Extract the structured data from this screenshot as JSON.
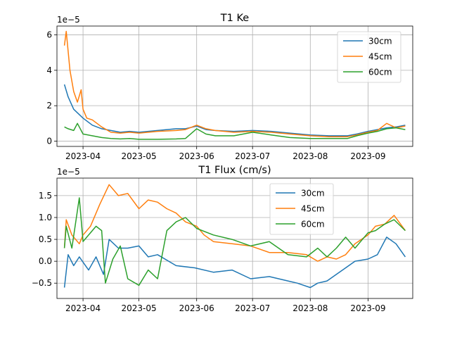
{
  "chart_data": [
    {
      "type": "line",
      "title": "T1 Ke",
      "offset_label": "1e−5",
      "xlabel": "",
      "ylabel": "",
      "x_ticks": [
        "2023-04",
        "2023-05",
        "2023-06",
        "2023-07",
        "2023-08",
        "2023-09"
      ],
      "y_ticks": [
        "0",
        "2",
        "4",
        "6"
      ],
      "ylim": [
        -0.3,
        6.5
      ],
      "grid": true,
      "legend_position": "top-right",
      "series": [
        {
          "name": "30cm",
          "color": "#1f77b4",
          "x": [
            "2023-03-22",
            "2023-03-24",
            "2023-03-27",
            "2023-04-01",
            "2023-04-06",
            "2023-04-11",
            "2023-04-16",
            "2023-04-21",
            "2023-04-26",
            "2023-05-01",
            "2023-05-11",
            "2023-05-21",
            "2023-05-26",
            "2023-06-01",
            "2023-06-06",
            "2023-06-11",
            "2023-06-21",
            "2023-07-01",
            "2023-07-11",
            "2023-07-21",
            "2023-08-01",
            "2023-08-11",
            "2023-08-21",
            "2023-08-26",
            "2023-09-01",
            "2023-09-06",
            "2023-09-11",
            "2023-09-16",
            "2023-09-21"
          ],
          "values": [
            3.2,
            2.5,
            1.8,
            1.3,
            0.9,
            0.7,
            0.6,
            0.5,
            0.55,
            0.5,
            0.6,
            0.7,
            0.7,
            0.85,
            0.65,
            0.6,
            0.55,
            0.6,
            0.55,
            0.45,
            0.35,
            0.3,
            0.3,
            0.4,
            0.55,
            0.65,
            0.75,
            0.8,
            0.9
          ]
        },
        {
          "name": "45cm",
          "color": "#ff7f0e",
          "x": [
            "2023-03-22",
            "2023-03-23",
            "2023-03-25",
            "2023-03-27",
            "2023-03-29",
            "2023-03-31",
            "2023-04-01",
            "2023-04-03",
            "2023-04-06",
            "2023-04-11",
            "2023-04-16",
            "2023-04-21",
            "2023-04-26",
            "2023-05-01",
            "2023-05-11",
            "2023-05-21",
            "2023-05-26",
            "2023-06-01",
            "2023-06-06",
            "2023-06-11",
            "2023-06-21",
            "2023-07-01",
            "2023-07-11",
            "2023-07-21",
            "2023-08-01",
            "2023-08-11",
            "2023-08-21",
            "2023-08-26",
            "2023-09-01",
            "2023-09-06",
            "2023-09-11",
            "2023-09-16",
            "2023-09-21"
          ],
          "values": [
            5.4,
            6.2,
            4.0,
            2.8,
            2.2,
            2.9,
            1.8,
            1.3,
            1.2,
            0.8,
            0.5,
            0.45,
            0.5,
            0.45,
            0.55,
            0.6,
            0.65,
            0.9,
            0.7,
            0.6,
            0.5,
            0.55,
            0.5,
            0.4,
            0.3,
            0.25,
            0.25,
            0.35,
            0.5,
            0.6,
            1.0,
            0.75,
            0.85
          ]
        },
        {
          "name": "60cm",
          "color": "#2ca02c",
          "x": [
            "2023-03-22",
            "2023-03-24",
            "2023-03-27",
            "2023-03-29",
            "2023-04-01",
            "2023-04-06",
            "2023-04-11",
            "2023-04-16",
            "2023-04-21",
            "2023-04-26",
            "2023-05-01",
            "2023-05-11",
            "2023-05-21",
            "2023-05-26",
            "2023-06-01",
            "2023-06-06",
            "2023-06-11",
            "2023-06-21",
            "2023-07-01",
            "2023-07-11",
            "2023-07-21",
            "2023-08-01",
            "2023-08-11",
            "2023-08-21",
            "2023-08-26",
            "2023-09-01",
            "2023-09-06",
            "2023-09-11",
            "2023-09-16",
            "2023-09-21"
          ],
          "values": [
            0.8,
            0.7,
            0.6,
            1.0,
            0.4,
            0.3,
            0.2,
            0.15,
            0.12,
            0.15,
            0.1,
            0.1,
            0.12,
            0.15,
            0.7,
            0.4,
            0.3,
            0.3,
            0.5,
            0.35,
            0.2,
            0.15,
            0.15,
            0.15,
            0.3,
            0.45,
            0.55,
            0.7,
            0.75,
            0.65
          ]
        }
      ]
    },
    {
      "type": "line",
      "title": "T1 Flux (cm/s)",
      "offset_label": "1e−5",
      "xlabel": "",
      "ylabel": "",
      "x_ticks": [
        "2023-04",
        "2023-05",
        "2023-06",
        "2023-07",
        "2023-08",
        "2023-09"
      ],
      "y_ticks": [
        "−0.5",
        "0.0",
        "0.5",
        "1.0",
        "1.5"
      ],
      "ylim": [
        -0.85,
        1.9
      ],
      "grid": true,
      "legend_position": "top-center",
      "series": [
        {
          "name": "30cm",
          "color": "#1f77b4",
          "x": [
            "2023-03-22",
            "2023-03-24",
            "2023-03-27",
            "2023-03-30",
            "2023-04-04",
            "2023-04-08",
            "2023-04-12",
            "2023-04-15",
            "2023-04-20",
            "2023-04-25",
            "2023-05-01",
            "2023-05-06",
            "2023-05-11",
            "2023-05-21",
            "2023-05-31",
            "2023-06-10",
            "2023-06-20",
            "2023-06-30",
            "2023-07-10",
            "2023-07-20",
            "2023-07-25",
            "2023-08-01",
            "2023-08-05",
            "2023-08-10",
            "2023-08-15",
            "2023-08-20",
            "2023-08-25",
            "2023-09-01",
            "2023-09-06",
            "2023-09-11",
            "2023-09-16",
            "2023-09-21"
          ],
          "values": [
            -0.6,
            0.15,
            -0.1,
            0.1,
            -0.2,
            0.1,
            -0.3,
            0.5,
            0.3,
            0.3,
            0.35,
            0.1,
            0.15,
            -0.1,
            -0.15,
            -0.25,
            -0.2,
            -0.4,
            -0.35,
            -0.45,
            -0.5,
            -0.6,
            -0.5,
            -0.45,
            -0.3,
            -0.15,
            0.0,
            0.05,
            0.15,
            0.55,
            0.4,
            0.1
          ]
        },
        {
          "name": "45cm",
          "color": "#ff7f0e",
          "x": [
            "2023-03-22",
            "2023-03-23",
            "2023-03-26",
            "2023-03-30",
            "2023-04-01",
            "2023-04-05",
            "2023-04-10",
            "2023-04-15",
            "2023-04-20",
            "2023-04-25",
            "2023-05-01",
            "2023-05-06",
            "2023-05-11",
            "2023-05-16",
            "2023-05-21",
            "2023-05-26",
            "2023-06-01",
            "2023-06-05",
            "2023-06-10",
            "2023-06-20",
            "2023-06-30",
            "2023-07-10",
            "2023-07-20",
            "2023-07-30",
            "2023-08-05",
            "2023-08-10",
            "2023-08-15",
            "2023-08-20",
            "2023-08-25",
            "2023-09-01",
            "2023-09-05",
            "2023-09-10",
            "2023-09-15",
            "2023-09-21"
          ],
          "values": [
            0.3,
            0.95,
            0.6,
            0.4,
            0.6,
            0.8,
            1.3,
            1.75,
            1.5,
            1.55,
            1.2,
            1.4,
            1.35,
            1.2,
            1.1,
            0.9,
            0.8,
            0.6,
            0.45,
            0.4,
            0.35,
            0.2,
            0.2,
            0.15,
            0.0,
            0.1,
            0.05,
            0.15,
            0.4,
            0.6,
            0.8,
            0.85,
            1.05,
            0.7
          ]
        },
        {
          "name": "60cm",
          "color": "#2ca02c",
          "x": [
            "2023-03-22",
            "2023-03-23",
            "2023-03-26",
            "2023-03-30",
            "2023-04-01",
            "2023-04-03",
            "2023-04-08",
            "2023-04-11",
            "2023-04-13",
            "2023-04-17",
            "2023-04-21",
            "2023-04-25",
            "2023-05-01",
            "2023-05-06",
            "2023-05-11",
            "2023-05-16",
            "2023-05-21",
            "2023-05-26",
            "2023-06-01",
            "2023-06-10",
            "2023-06-20",
            "2023-06-30",
            "2023-07-10",
            "2023-07-20",
            "2023-07-30",
            "2023-08-05",
            "2023-08-10",
            "2023-08-15",
            "2023-08-20",
            "2023-08-25",
            "2023-09-01",
            "2023-09-05",
            "2023-09-10",
            "2023-09-15",
            "2023-09-21"
          ],
          "values": [
            0.3,
            0.8,
            0.3,
            1.45,
            0.45,
            0.55,
            0.8,
            0.7,
            -0.5,
            0.05,
            0.35,
            -0.4,
            -0.55,
            -0.2,
            -0.4,
            0.7,
            0.9,
            1.0,
            0.75,
            0.6,
            0.5,
            0.35,
            0.45,
            0.15,
            0.1,
            0.3,
            0.1,
            0.3,
            0.55,
            0.3,
            0.65,
            0.7,
            0.85,
            0.95,
            0.7
          ]
        }
      ]
    }
  ]
}
